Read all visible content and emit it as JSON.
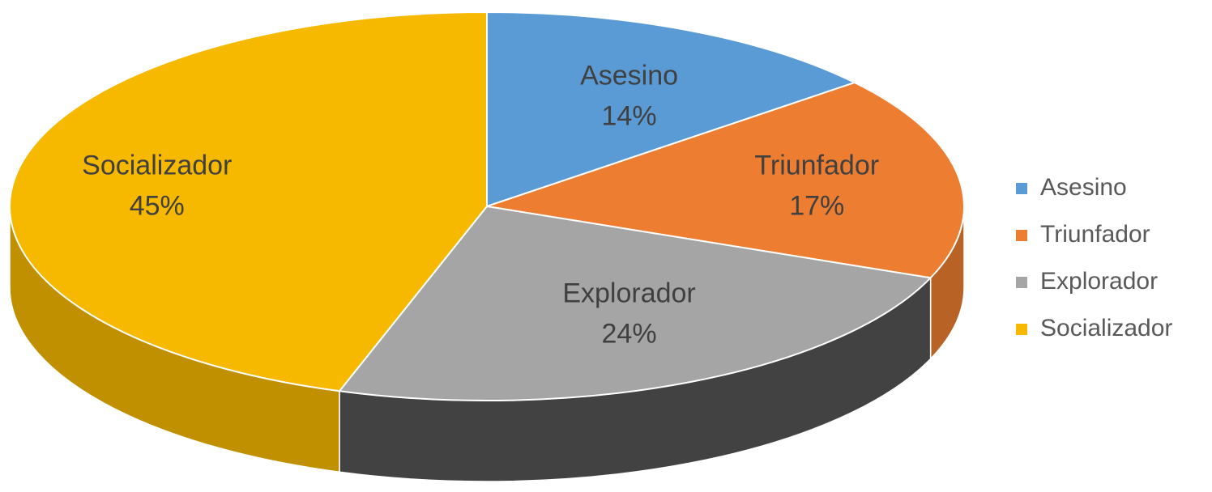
{
  "chart_data": {
    "type": "pie",
    "categories": [
      "Asesino",
      "Triunfador",
      "Explorador",
      "Socializador"
    ],
    "values": [
      14,
      17,
      24,
      45
    ],
    "value_labels": [
      "14%",
      "17%",
      "24%",
      "45%"
    ],
    "colors": [
      "#5b9bd5",
      "#ed7d31",
      "#a5a5a5",
      "#f7b900"
    ],
    "legend": "right"
  }
}
